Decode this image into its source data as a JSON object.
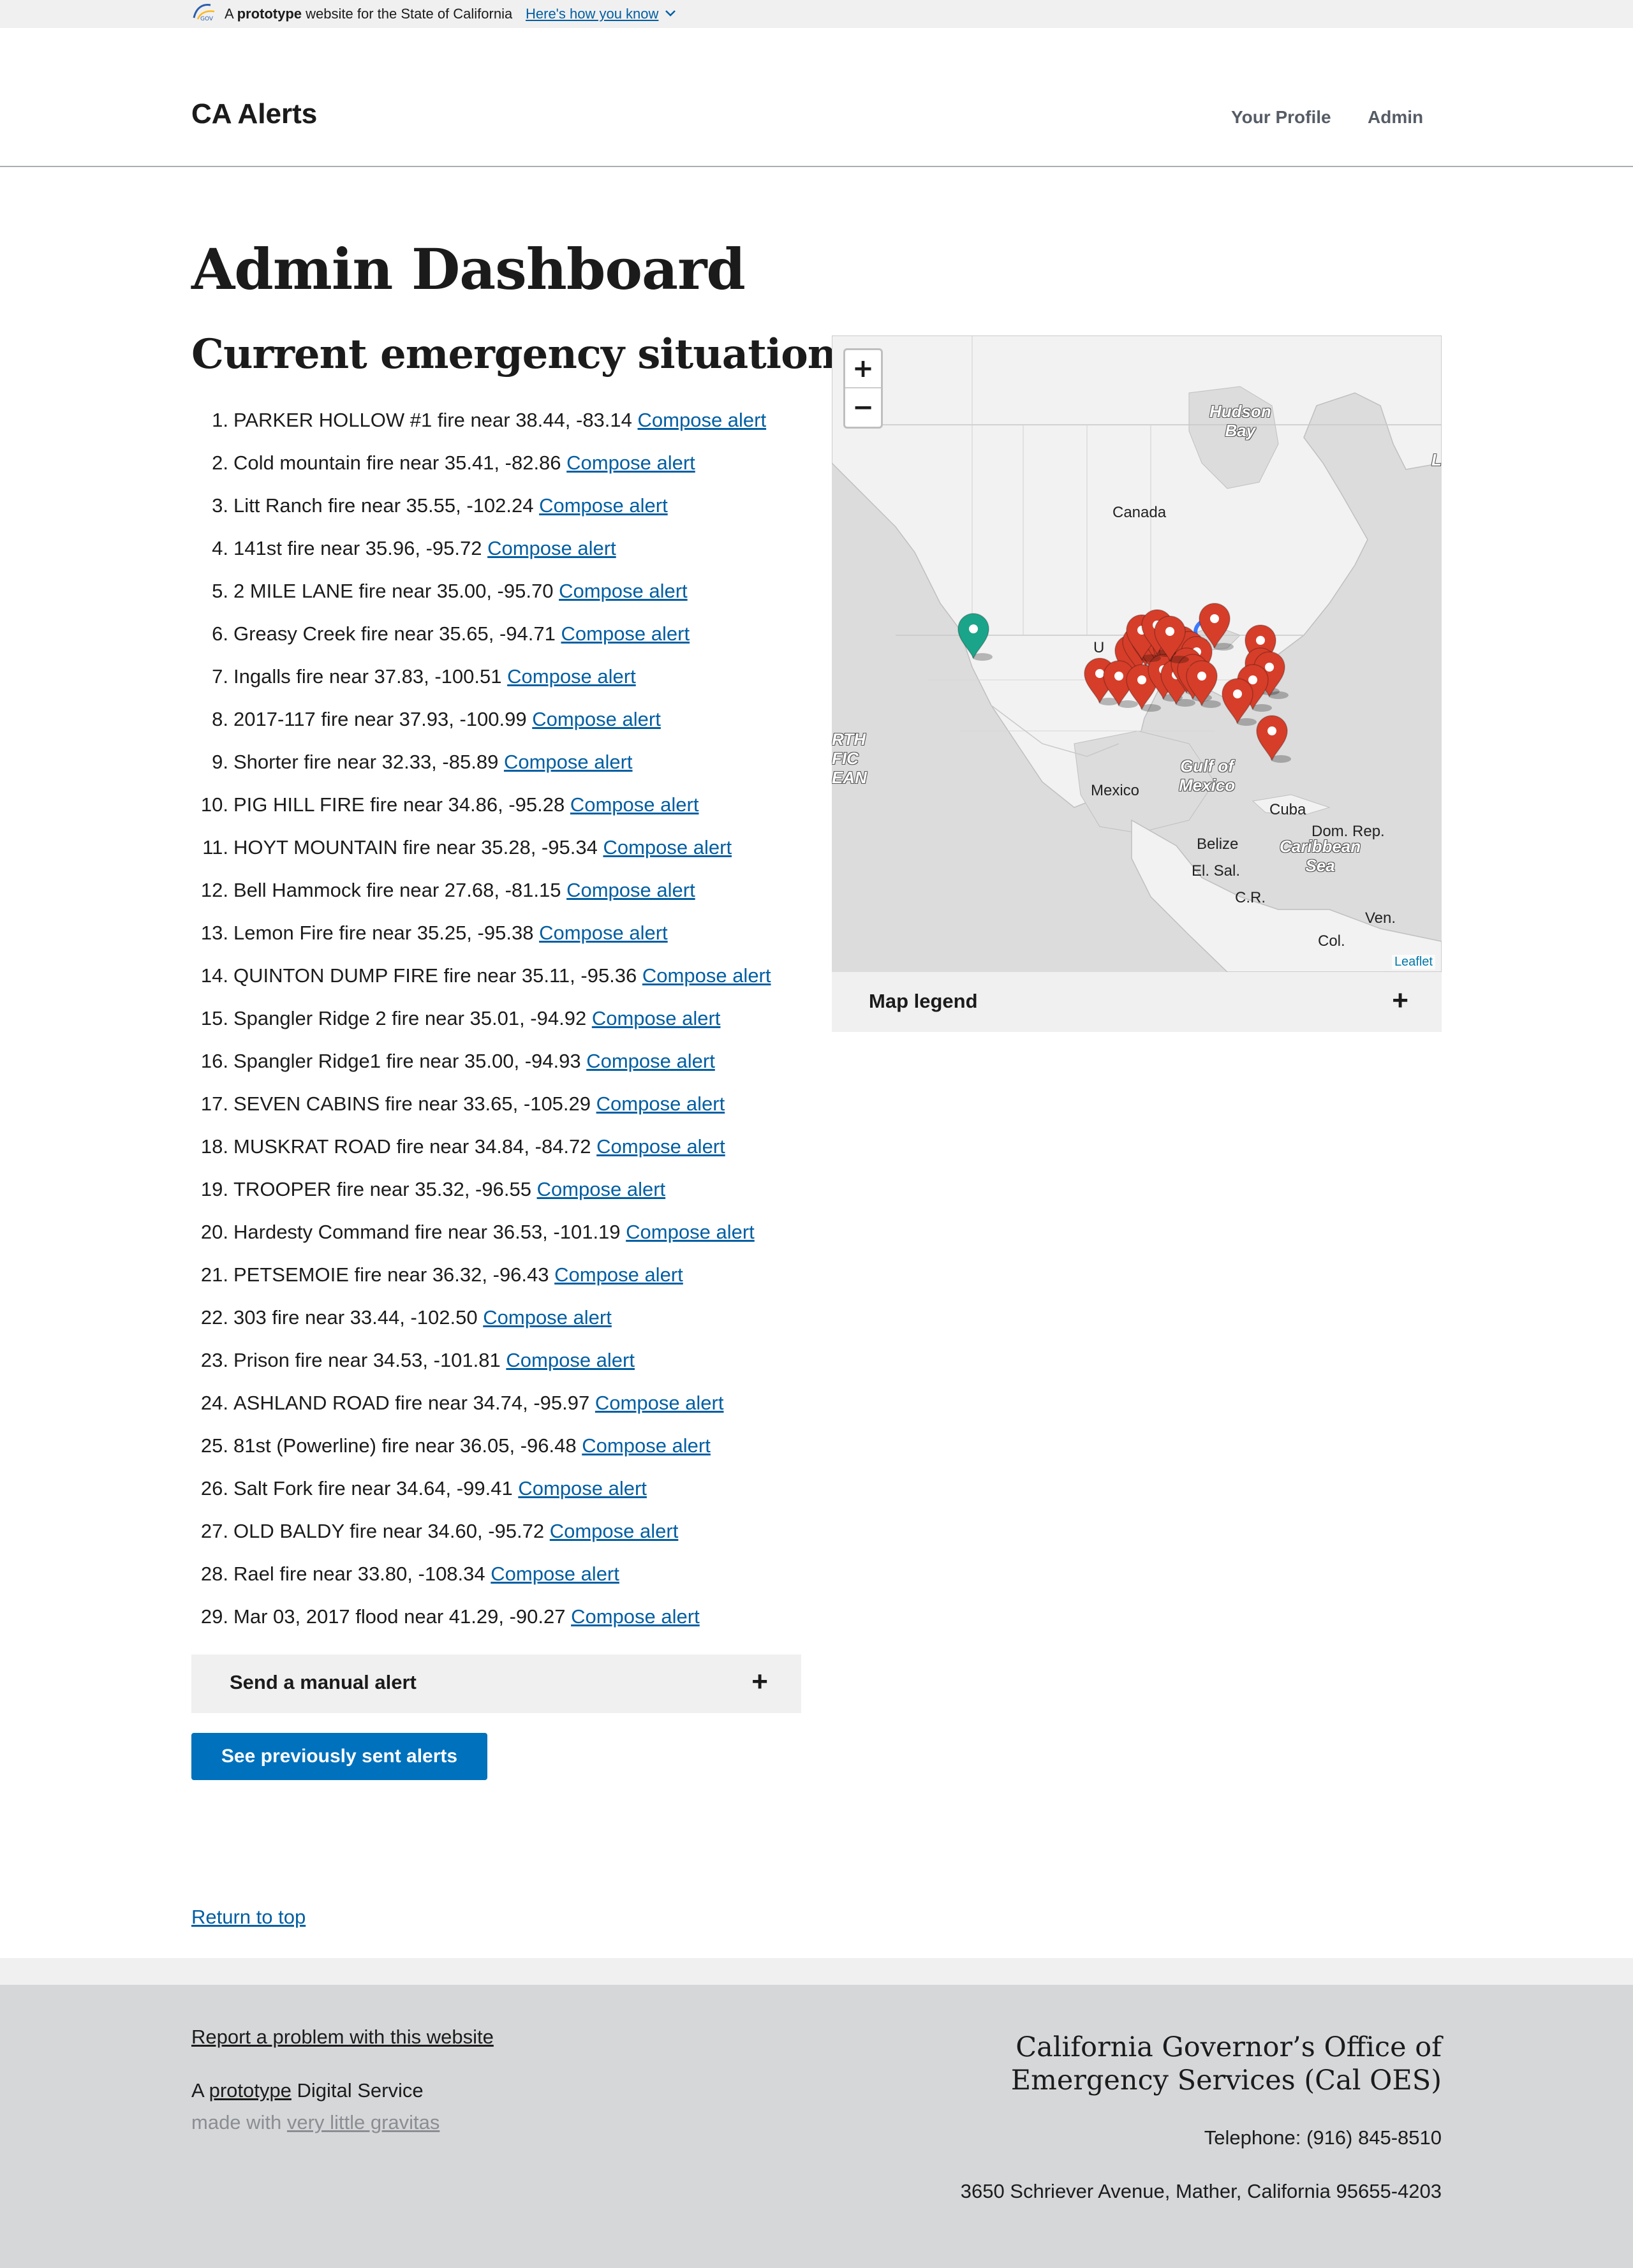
{
  "banner": {
    "prefix": "A ",
    "emphasis": "prototype",
    "suffix": " website for the State of California",
    "how_link": "Here's how you know"
  },
  "header": {
    "logo": "CA Alerts",
    "nav": {
      "profile": "Your Profile",
      "admin": "Admin"
    }
  },
  "page_title": "Admin Dashboard",
  "section_title": "Current emergency situations",
  "compose_label": "Compose alert",
  "situations": [
    {
      "num": "1.",
      "text": "PARKER HOLLOW #1 fire near 38.44, -83.14"
    },
    {
      "num": "2.",
      "text": "Cold mountain fire near 35.41, -82.86"
    },
    {
      "num": "3.",
      "text": "Litt Ranch fire near 35.55, -102.24"
    },
    {
      "num": "4.",
      "text": "141st fire near 35.96, -95.72"
    },
    {
      "num": "5.",
      "text": "2 MILE LANE fire near 35.00, -95.70"
    },
    {
      "num": "6.",
      "text": "Greasy Creek fire near 35.65, -94.71"
    },
    {
      "num": "7.",
      "text": "Ingalls fire near 37.83, -100.51"
    },
    {
      "num": "8.",
      "text": "2017-117 fire near 37.93, -100.99"
    },
    {
      "num": "9.",
      "text": "Shorter fire near 32.33, -85.89"
    },
    {
      "num": "10.",
      "text": "PIG HILL FIRE fire near 34.86, -95.28"
    },
    {
      "num": "11.",
      "text": "HOYT MOUNTAIN fire near 35.28, -95.34"
    },
    {
      "num": "12.",
      "text": "Bell Hammock fire near 27.68, -81.15"
    },
    {
      "num": "13.",
      "text": "Lemon Fire fire near 35.25, -95.38"
    },
    {
      "num": "14.",
      "text": "QUINTON DUMP FIRE fire near 35.11, -95.36"
    },
    {
      "num": "15.",
      "text": "Spangler Ridge 2 fire near 35.01, -94.92"
    },
    {
      "num": "16.",
      "text": "Spangler Ridge1 fire near 35.00, -94.93"
    },
    {
      "num": "17.",
      "text": "SEVEN CABINS fire near 33.65, -105.29"
    },
    {
      "num": "18.",
      "text": "MUSKRAT ROAD fire near 34.84, -84.72"
    },
    {
      "num": "19.",
      "text": "TROOPER fire near 35.32, -96.55"
    },
    {
      "num": "20.",
      "text": "Hardesty Command fire near 36.53, -101.19"
    },
    {
      "num": "21.",
      "text": "PETSEMOIE fire near 36.32, -96.43"
    },
    {
      "num": "22.",
      "text": "303 fire near 33.44, -102.50"
    },
    {
      "num": "23.",
      "text": "Prison fire near 34.53, -101.81"
    },
    {
      "num": "24.",
      "text": "ASHLAND ROAD fire near 34.74, -95.97"
    },
    {
      "num": "25.",
      "text": "81st (Powerline) fire near 36.05, -96.48"
    },
    {
      "num": "26.",
      "text": "Salt Fork fire near 34.64, -99.41"
    },
    {
      "num": "27.",
      "text": "OLD BALDY fire near 34.60, -95.72"
    },
    {
      "num": "28.",
      "text": "Rael fire near 33.80, -108.34"
    },
    {
      "num": "29.",
      "text": "Mar 03, 2017 flood near 41.29, -90.27"
    }
  ],
  "manual_alert": {
    "label": "Send a manual alert",
    "toggle": "+"
  },
  "previous_button": "See previously sent alerts",
  "map": {
    "zoom_in": "+",
    "zoom_out": "−",
    "attribution": "Leaflet",
    "labels": {
      "hudson": "Hudson\nBay",
      "canada": "Canada",
      "us": "U",
      "us_tail": "s",
      "mexico": "Mexico",
      "gulf": "Gulf of\nMexico",
      "cuba": "Cuba",
      "belize": "Belize",
      "elsal": "El. Sal.",
      "cr": "C.R.",
      "domrep": "Dom. Rep.",
      "caribbean": "Caribbean\nSea",
      "ven": "Ven.",
      "col": "Col.",
      "pacific": "RTH\nFIC\nEAN",
      "edge": "L"
    },
    "water": "#ffffff",
    "land": "#f2f2f2",
    "marker_color": "#d63e2a",
    "home_marker_color": "#1aa58a"
  },
  "map_legend": {
    "label": "Map legend",
    "toggle": "+"
  },
  "return_top": "Return to top",
  "footer": {
    "report": "Report a problem with this website",
    "proto_prefix": "A ",
    "proto_link": "prototype",
    "proto_suffix": " Digital Service",
    "made_prefix": "made with ",
    "made_link": "very little gravitas",
    "org_line1": "California Governor’s Office of",
    "org_line2": "Emergency Services (Cal OES)",
    "phone": "Telephone: (916) 845-8510",
    "address": "3650 Schriever Avenue, Mather, California 95655-4203"
  }
}
